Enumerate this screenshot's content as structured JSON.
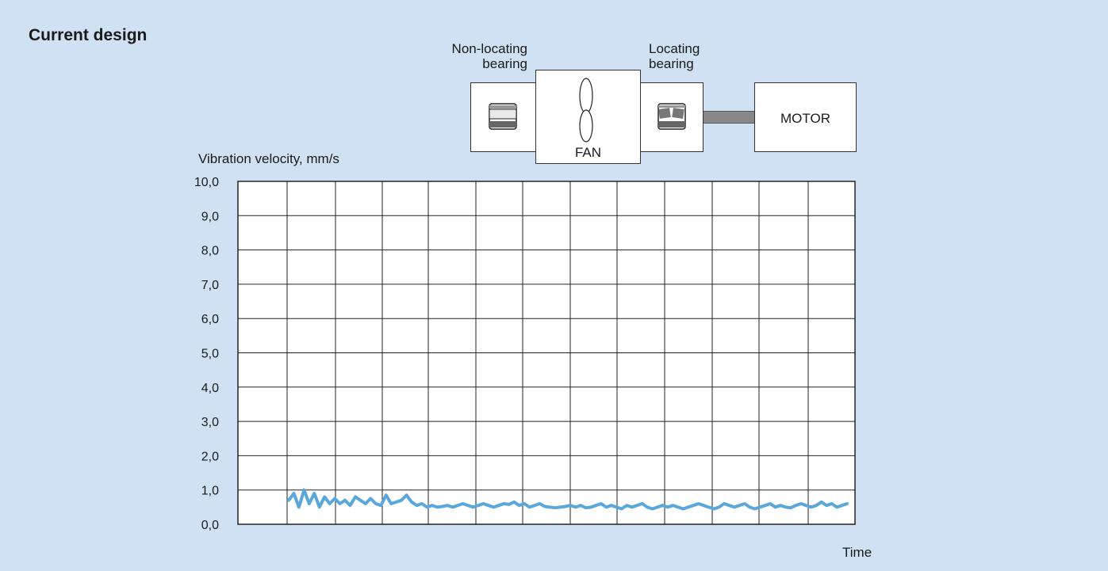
{
  "header": {
    "title": "Current design"
  },
  "schematic": {
    "nonlocating_label_line1": "Non-locating",
    "nonlocating_label_line2": "bearing",
    "locating_label_line1": "Locating",
    "locating_label_line2": "bearing",
    "fan_label": "FAN",
    "motor_label": "MOTOR"
  },
  "colors": {
    "background": "#cfe1f2",
    "series": "#5aa7dc",
    "grid": "#222222"
  },
  "chart_data": {
    "type": "line",
    "title": "",
    "ylabel": "Vibration velocity, mm/s",
    "xlabel": "Time",
    "ylim": [
      0,
      10
    ],
    "yticks": [
      "0,0",
      "1,0",
      "2,0",
      "3,0",
      "4,0",
      "5,0",
      "6,0",
      "7,0",
      "8,0",
      "9,0",
      "10,0"
    ],
    "grid": true,
    "series": [
      {
        "values": [
          0.7,
          0.9,
          0.5,
          1.0,
          0.6,
          0.9,
          0.5,
          0.8,
          0.6,
          0.75,
          0.6,
          0.7,
          0.55,
          0.8,
          0.7,
          0.6,
          0.75,
          0.6,
          0.55,
          0.85,
          0.6,
          0.65,
          0.7,
          0.85,
          0.65,
          0.55,
          0.6,
          0.5,
          0.55,
          0.5,
          0.52,
          0.55,
          0.5,
          0.55,
          0.6,
          0.55,
          0.5,
          0.55,
          0.6,
          0.55,
          0.5,
          0.55,
          0.6,
          0.58,
          0.65,
          0.55,
          0.6,
          0.5,
          0.55,
          0.6,
          0.52,
          0.5,
          0.48,
          0.5,
          0.52,
          0.55,
          0.5,
          0.55,
          0.48,
          0.5,
          0.55,
          0.6,
          0.5,
          0.55,
          0.5,
          0.45,
          0.55,
          0.5,
          0.55,
          0.6,
          0.5,
          0.45,
          0.5,
          0.55,
          0.5,
          0.55,
          0.5,
          0.45,
          0.5,
          0.55,
          0.6,
          0.55,
          0.5,
          0.45,
          0.5,
          0.6,
          0.55,
          0.5,
          0.55,
          0.6,
          0.5,
          0.45,
          0.5,
          0.55,
          0.6,
          0.5,
          0.55,
          0.5,
          0.48,
          0.55,
          0.6,
          0.55,
          0.5,
          0.55,
          0.65,
          0.55,
          0.6,
          0.5,
          0.55,
          0.6
        ]
      }
    ]
  }
}
